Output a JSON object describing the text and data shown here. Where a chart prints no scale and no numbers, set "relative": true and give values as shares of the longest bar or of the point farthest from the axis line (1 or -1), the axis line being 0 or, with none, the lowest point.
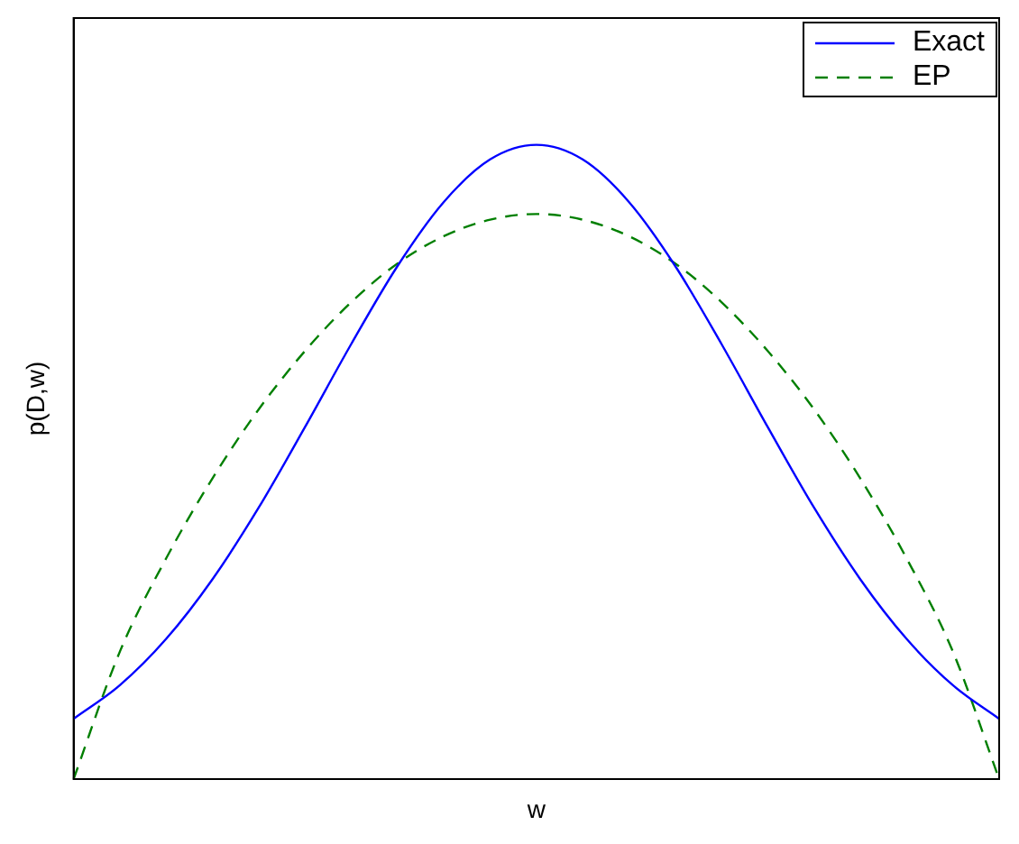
{
  "chart_data": {
    "type": "line",
    "relative": true,
    "xlabel": "w",
    "ylabel": "p(D,w)",
    "categories": [
      null,
      null,
      null,
      null,
      null,
      null,
      null,
      null,
      null,
      null,
      null,
      null,
      null,
      null,
      null,
      null,
      null,
      null,
      null,
      null,
      null
    ],
    "series": [
      {
        "name": "Exact",
        "color": "#0000ff",
        "line_style": "solid",
        "values": [
          0.095,
          0.148,
          0.221,
          0.315,
          0.428,
          0.555,
          0.686,
          0.809,
          0.91,
          0.977,
          1,
          0.977,
          0.91,
          0.809,
          0.686,
          0.555,
          0.428,
          0.315,
          0.221,
          0.148,
          0.095
        ]
      },
      {
        "name": "EP",
        "color": "#007f00",
        "line_style": "dashed",
        "values": [
          0,
          0.201,
          0.348,
          0.474,
          0.583,
          0.675,
          0.752,
          0.813,
          0.856,
          0.882,
          0.891,
          0.882,
          0.856,
          0.813,
          0.752,
          0.675,
          0.583,
          0.474,
          0.348,
          0.201,
          0
        ]
      }
    ],
    "legend": "top right",
    "grid": false,
    "marker": "none"
  }
}
